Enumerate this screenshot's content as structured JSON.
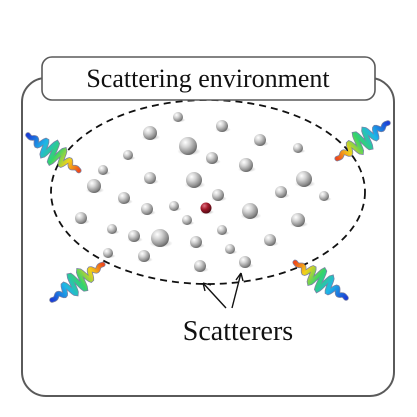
{
  "title": "Scattering environment",
  "label": "Scatterers",
  "colors": {
    "frame": "#5a5a5a",
    "boundary": "#111111",
    "scatterer": "#a8a8a8",
    "target": "#8b1420",
    "wave_cool": "#1b3fd6",
    "wave_mid": "#23d17a",
    "wave_warm": "#f04a1a"
  }
}
